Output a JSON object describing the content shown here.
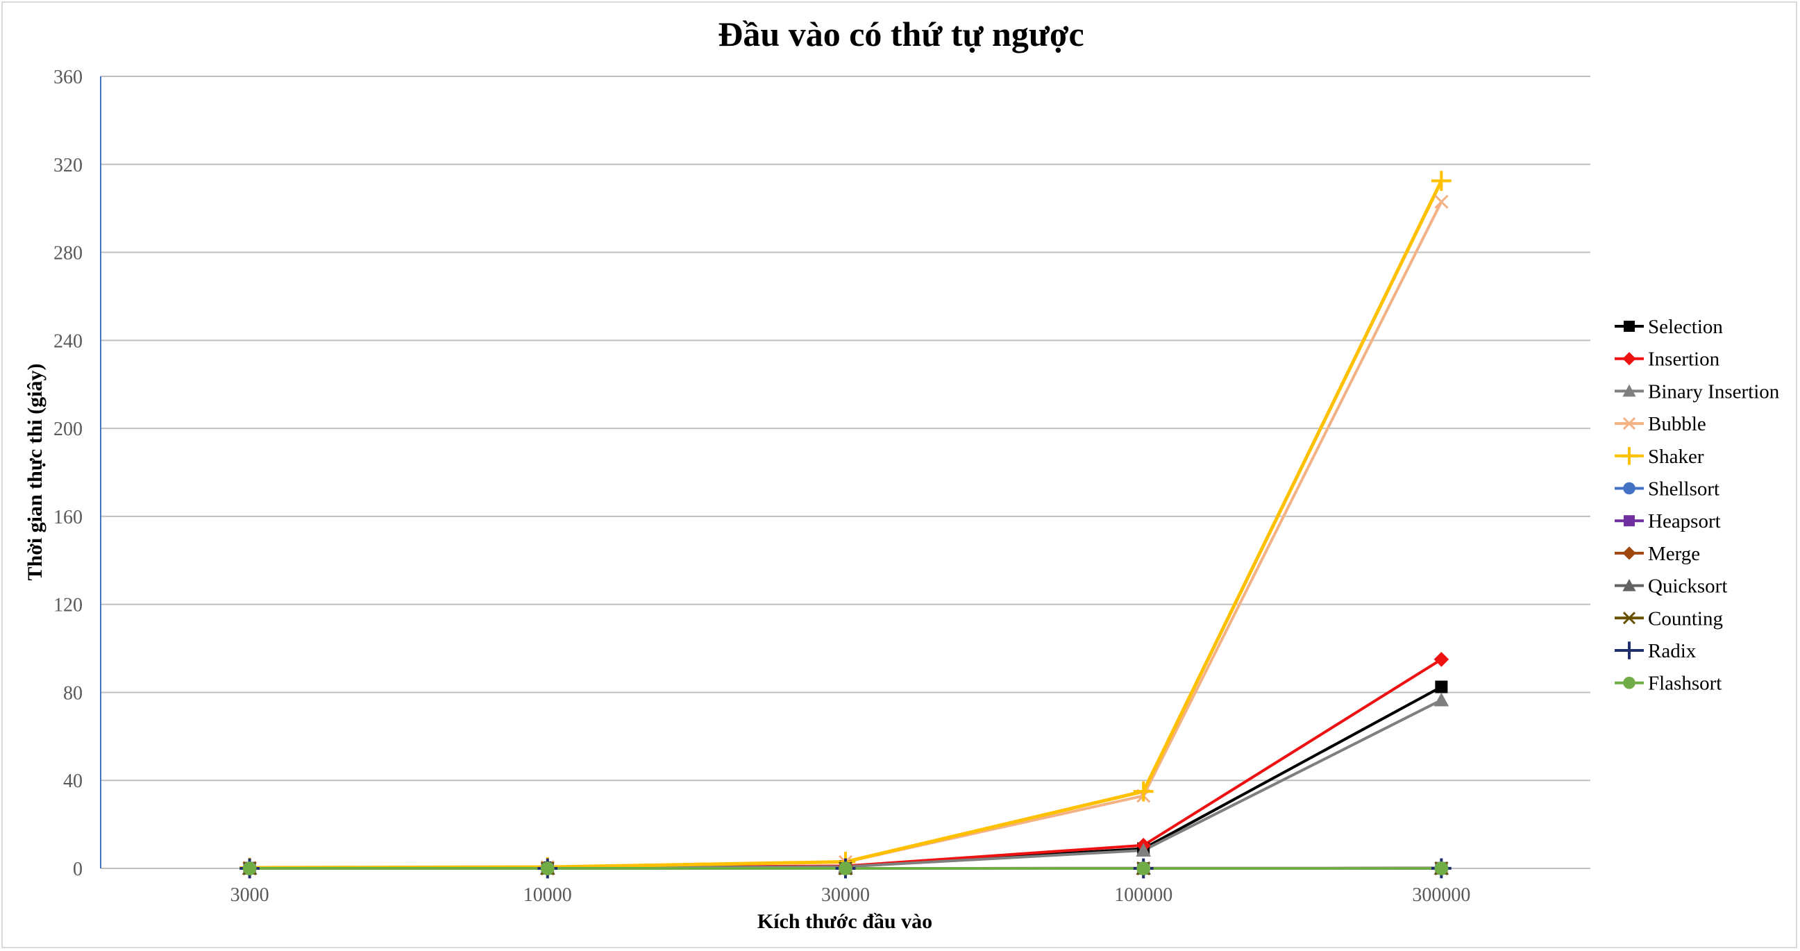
{
  "chart_data": {
    "type": "line",
    "title": "Đầu vào có thứ tự ngược",
    "xlabel": "Kích thước đầu vào",
    "ylabel": "Thời gian thực thi (giây)",
    "categories": [
      "3000",
      "10000",
      "30000",
      "100000",
      "300000"
    ],
    "ylim": [
      0,
      360
    ],
    "yticks": [
      0,
      40,
      80,
      120,
      160,
      200,
      240,
      280,
      320,
      360
    ],
    "grid": true,
    "legend_position": "right",
    "series": [
      {
        "name": "Selection",
        "color": "#000000",
        "marker": "square",
        "values": [
          0.1,
          0.3,
          0.9,
          9.0,
          82.5
        ]
      },
      {
        "name": "Insertion",
        "color": "#ee1111",
        "marker": "diamond",
        "values": [
          0.1,
          0.3,
          1.1,
          10.5,
          95.0
        ]
      },
      {
        "name": "Binary Insertion",
        "color": "#7f7f7f",
        "marker": "triangle",
        "values": [
          0.1,
          0.2,
          0.8,
          8.2,
          76.5
        ]
      },
      {
        "name": "Bubble",
        "color": "#f4b183",
        "marker": "x",
        "values": [
          0.3,
          0.6,
          2.9,
          33.0,
          303.0
        ]
      },
      {
        "name": "Shaker",
        "color": "#ffc000",
        "marker": "plus",
        "values": [
          0.3,
          0.6,
          3.0,
          35.0,
          312.5
        ]
      },
      {
        "name": "Shellsort",
        "color": "#4472c4",
        "marker": "circle",
        "values": [
          0,
          0,
          0,
          0.01,
          0.03
        ]
      },
      {
        "name": "Heapsort",
        "color": "#7030a0",
        "marker": "square",
        "values": [
          0,
          0,
          0.01,
          0.02,
          0.06
        ]
      },
      {
        "name": "Merge",
        "color": "#9e480e",
        "marker": "diamond",
        "values": [
          0,
          0,
          0.01,
          0.02,
          0.06
        ]
      },
      {
        "name": "Quicksort",
        "color": "#636363",
        "marker": "triangle",
        "values": [
          0,
          0,
          0,
          0.01,
          0.02
        ]
      },
      {
        "name": "Counting",
        "color": "#665200",
        "marker": "star",
        "values": [
          0,
          0,
          0,
          0,
          0.01
        ]
      },
      {
        "name": "Radix",
        "color": "#1f2f6e",
        "marker": "plus",
        "values": [
          0,
          0,
          0,
          0.01,
          0.03
        ]
      },
      {
        "name": "Flashsort",
        "color": "#70ad47",
        "marker": "circle",
        "values": [
          0,
          0,
          0,
          0.01,
          0.02
        ]
      }
    ]
  }
}
